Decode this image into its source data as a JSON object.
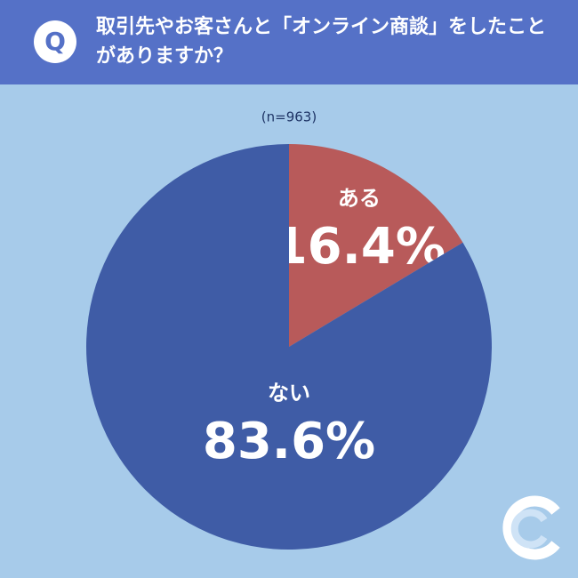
{
  "badge": "Q",
  "chart_data": {
    "type": "pie",
    "title": "取引先やお客さんと「オンライン商談」をしたことがありますか？",
    "subtitle": "(n=963)",
    "categories": [
      "ある",
      "ない"
    ],
    "values": [
      16.4,
      83.6
    ],
    "value_labels": [
      "16.4%",
      "83.6%"
    ],
    "colors": [
      "#b85a5a",
      "#3f5ca6"
    ]
  }
}
